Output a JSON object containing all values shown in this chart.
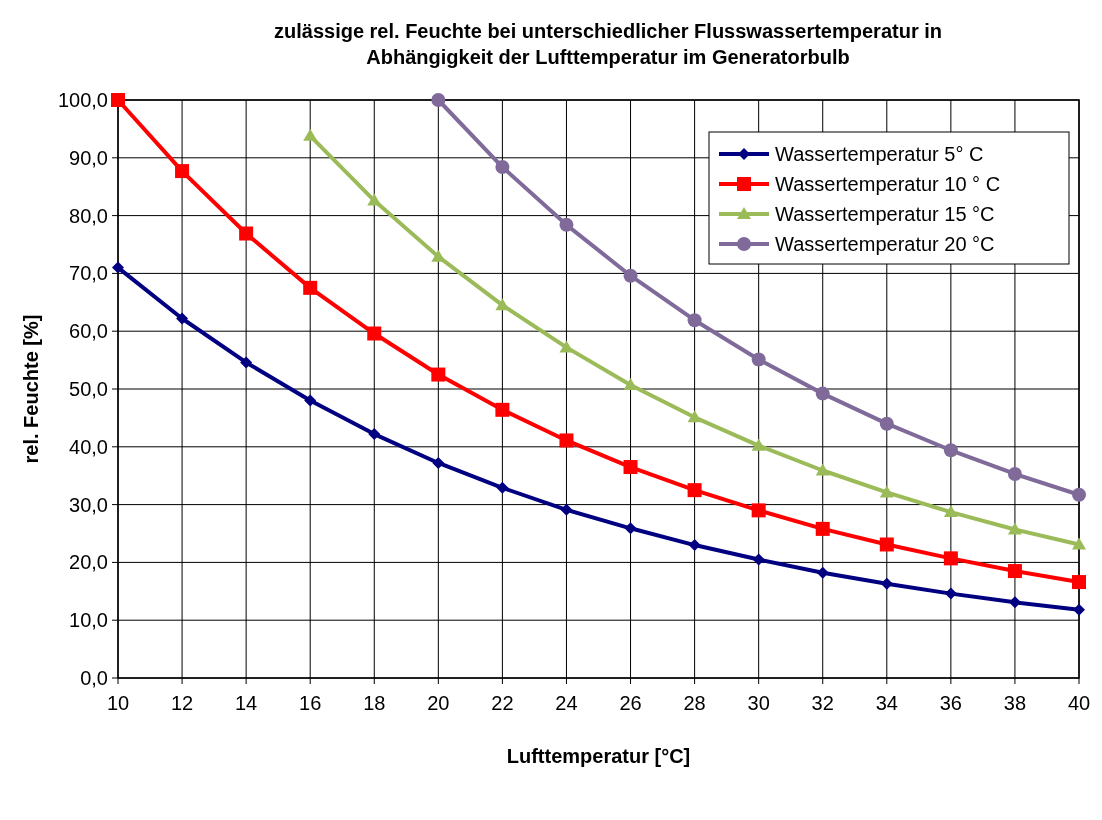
{
  "chart_data": {
    "type": "line",
    "title": "zulässige rel.  Feuchte bei unterschiedlicher Flusswassertemperatur in Abhängigkeit der Lufttemperatur im Generatorbulb",
    "xlabel": "Lufttemperatur [°C]",
    "ylabel": "rel. Feuchte [%]",
    "x": [
      10,
      12,
      14,
      16,
      18,
      20,
      22,
      24,
      26,
      28,
      30,
      32,
      34,
      36,
      38,
      40
    ],
    "series": [
      {
        "name": "Wassertemperatur  5° C",
        "color": "#000080",
        "marker": "diamond",
        "values": [
          71.0,
          62.2,
          54.6,
          48.0,
          42.2,
          37.2,
          32.9,
          29.1,
          25.9,
          23.0,
          20.5,
          18.2,
          16.3,
          14.6,
          13.1,
          11.8
        ]
      },
      {
        "name": "Wassertemperatur 10 ° C",
        "color": "#ff0000",
        "marker": "square",
        "values": [
          100,
          87.7,
          76.9,
          67.5,
          59.6,
          52.5,
          46.4,
          41.1,
          36.5,
          32.5,
          29.0,
          25.8,
          23.1,
          20.7,
          18.5,
          16.6
        ]
      },
      {
        "name": "Wassertemperatur 15 °C",
        "color": "#9bbb59",
        "marker": "triangle",
        "values": [
          null,
          null,
          null,
          93.8,
          82.6,
          72.9,
          64.5,
          57.2,
          50.7,
          45.1,
          40.2,
          35.9,
          32.1,
          28.7,
          25.7,
          23.1
        ]
      },
      {
        "name": "Wassertemperatur 20 °C",
        "color": "#7f6a9a",
        "marker": "circle",
        "values": [
          null,
          null,
          null,
          null,
          null,
          100,
          88.4,
          78.4,
          69.6,
          61.9,
          55.1,
          49.2,
          44.0,
          39.4,
          35.3,
          31.7
        ]
      }
    ],
    "xlim": [
      10,
      40
    ],
    "xticks": [
      10,
      12,
      14,
      16,
      18,
      20,
      22,
      24,
      26,
      28,
      30,
      32,
      34,
      36,
      38,
      40
    ],
    "ylim": [
      0,
      100
    ],
    "yticks": [
      {
        "value": 0,
        "label": "0,0"
      },
      {
        "value": 10,
        "label": "10,0"
      },
      {
        "value": 20,
        "label": "20,0"
      },
      {
        "value": 30,
        "label": "30,0"
      },
      {
        "value": 40,
        "label": "40,0"
      },
      {
        "value": 50,
        "label": "50,0"
      },
      {
        "value": 60,
        "label": "60,0"
      },
      {
        "value": 70,
        "label": "70,0"
      },
      {
        "value": 80,
        "label": "80,0"
      },
      {
        "value": 90,
        "label": "90,0"
      },
      {
        "value": 100,
        "label": "100,0"
      }
    ],
    "grid": true,
    "legend": "top right",
    "line_style": "solid"
  }
}
